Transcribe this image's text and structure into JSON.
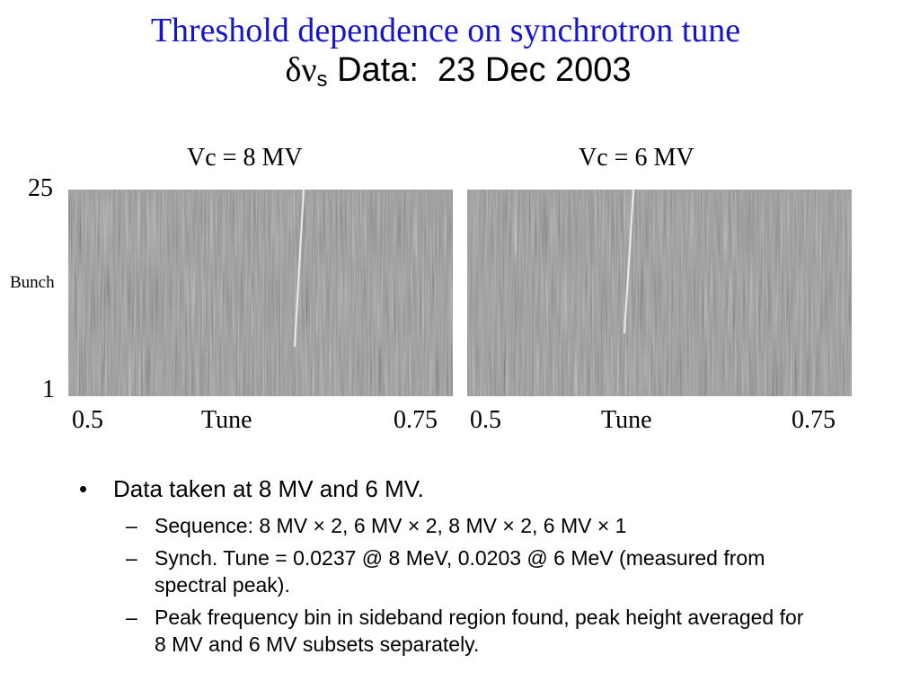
{
  "slide": {
    "title": "Threshold dependence on synchrotron tune",
    "subtitle_delta": "δ",
    "subtitle_nu": "ν",
    "subtitle_sub": "s",
    "subtitle_text": " Data:  23 Dec 2003"
  },
  "plots": [
    {
      "title": "Vc = 8 MV",
      "x_min_label": "0.5",
      "x_label": "Tune",
      "x_max_label": "0.75"
    },
    {
      "title": "Vc = 6 MV",
      "x_min_label": "0.5",
      "x_label": "Tune",
      "x_max_label": "0.75"
    }
  ],
  "y_axis": {
    "top_label": "25",
    "label": "Bunch",
    "bottom_label": "1"
  },
  "bullets": {
    "main": "Data taken at 8 MV and 6 MV.",
    "sub_items": [
      "Sequence:  8 MV × 2, 6 MV × 2, 8 MV × 2, 6 MV × 1",
      "Synch. Tune = 0.0237 @ 8 MeV, 0.0203 @ 6 MeV (measured from spectral peak).",
      "Peak frequency bin in sideband region found, peak height averaged for 8 MV and 6 MV subsets separately."
    ],
    "bullet_mark": "•",
    "dash_mark": "–"
  }
}
